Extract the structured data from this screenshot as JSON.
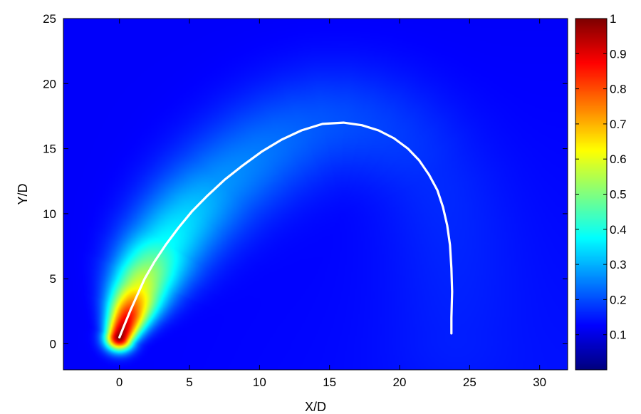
{
  "chart_data": {
    "type": "heatmap",
    "title": "",
    "xlabel": "X/D",
    "ylabel": "Y/D",
    "xlim": [
      -4,
      32
    ],
    "ylim": [
      -2,
      25
    ],
    "xticks": [
      0,
      5,
      10,
      15,
      20,
      25,
      30
    ],
    "yticks": [
      0,
      5,
      10,
      15,
      20,
      25
    ],
    "grid": false,
    "colormap": "jet",
    "colorbar": {
      "range": [
        0,
        1
      ],
      "ticks": [
        0.1,
        0.2,
        0.3,
        0.4,
        0.5,
        0.6,
        0.7,
        0.8,
        0.9,
        1
      ],
      "tick_labels": [
        "0.1",
        "0.2",
        "0.3",
        "0.4",
        "0.5",
        "0.6",
        "0.7",
        "0.8",
        "0.9",
        "1"
      ]
    },
    "background_value": 0.12,
    "plume": {
      "description_points": [
        {
          "s": 0.0,
          "peak": 1.0,
          "width": 0.7
        },
        {
          "s": 2.0,
          "peak": 0.85,
          "width": 1.1
        },
        {
          "s": 4.0,
          "peak": 0.62,
          "width": 1.5
        },
        {
          "s": 8.0,
          "peak": 0.38,
          "width": 2.1
        },
        {
          "s": 14.0,
          "peak": 0.27,
          "width": 2.6
        },
        {
          "s": 22.0,
          "peak": 0.21,
          "width": 3.0
        },
        {
          "s": 32.0,
          "peak": 0.16,
          "width": 3.3
        },
        {
          "s": 50.0,
          "peak": 0.13,
          "width": 3.6
        }
      ]
    },
    "trajectory": {
      "name": "",
      "color": "#ffffff",
      "x": [
        0.0,
        0.3,
        0.8,
        1.3,
        1.8,
        2.5,
        3.3,
        4.2,
        5.2,
        6.3,
        7.5,
        8.8,
        10.2,
        11.6,
        13.0,
        14.5,
        16.0,
        17.3,
        18.5,
        19.6,
        20.6,
        21.4,
        22.1,
        22.7,
        23.1,
        23.4,
        23.6,
        23.7,
        23.75,
        23.7,
        23.7
      ],
      "y": [
        0.5,
        1.3,
        2.6,
        3.8,
        5.0,
        6.3,
        7.6,
        8.9,
        10.2,
        11.4,
        12.6,
        13.7,
        14.8,
        15.7,
        16.4,
        16.9,
        17.0,
        16.8,
        16.4,
        15.8,
        15.0,
        14.1,
        13.0,
        11.8,
        10.5,
        9.1,
        7.6,
        5.8,
        4.0,
        2.0,
        0.8
      ]
    }
  }
}
